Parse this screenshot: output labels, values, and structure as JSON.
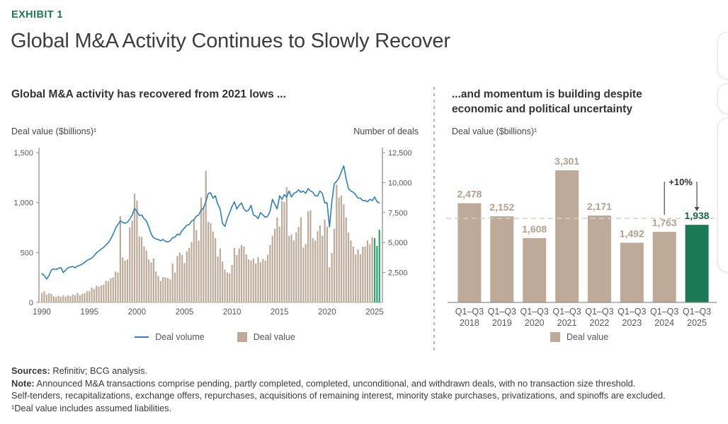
{
  "header": {
    "exhibit_label": "EXHIBIT 1",
    "title": "Global M&A Activity Continues to Slowly Recover"
  },
  "colors": {
    "brand_green": "#1b7b4f",
    "bar_tan": "#bdaa99",
    "bar_green_left": "#2ca46b",
    "bar_green_right": "#1b7a55",
    "line_blue": "#2e7fc0",
    "value_label_tan": "#b3a08e",
    "value_label_green": "#186a48",
    "axis_gray": "#8f8f8f",
    "dashed_ref": "#d7d1c9",
    "text_dark": "#333333"
  },
  "chart_data": [
    {
      "type": "bar+line",
      "panel_title": "Global M&A activity has recovered from 2021 lows ...",
      "left_axis": {
        "label": "Deal value ($billions)¹",
        "max": 1500,
        "ticks": [
          {
            "value": 0,
            "label": "0"
          },
          {
            "value": 500,
            "label": "500"
          },
          {
            "value": 1000,
            "label": "1,000"
          },
          {
            "value": 1500,
            "label": "1,500"
          }
        ]
      },
      "right_axis": {
        "label": "Number of deals",
        "max": 12500,
        "ticks": [
          {
            "value": 2500,
            "label": "2,500"
          },
          {
            "value": 5000,
            "label": "5,000"
          },
          {
            "value": 7500,
            "label": "7,500"
          },
          {
            "value": 10000,
            "label": "10,000"
          },
          {
            "value": 12500,
            "label": "12,500"
          }
        ]
      },
      "x_axis": {
        "start_year": 1990,
        "period": "quarterly",
        "end": "2025 Q3",
        "tick_years": [
          1990,
          1995,
          2000,
          2005,
          2010,
          2015,
          2020,
          2025
        ]
      },
      "bar_series": {
        "name": "Deal value",
        "axis": "left",
        "color": "#bdaa99",
        "highlight_color": "#2ca46b",
        "highlight_last_n": 3,
        "values": [
          95,
          115,
          78,
          90,
          85,
          62,
          55,
          66,
          56,
          70,
          60,
          70,
          62,
          80,
          74,
          96,
          72,
          86,
          92,
          112,
          112,
          148,
          136,
          168,
          158,
          172,
          178,
          215,
          215,
          242,
          252,
          310,
          300,
          865,
          450,
          420,
          430,
          750,
          820,
          1090,
          1020,
          660,
          655,
          560,
          520,
          430,
          400,
          440,
          310,
          265,
          215,
          255,
          250,
          245,
          230,
          390,
          300,
          465,
          500,
          475,
          395,
          512,
          547,
          605,
          830,
          725,
          620,
          1050,
          945,
          1320,
          805,
          795,
          710,
          645,
          460,
          540,
          410,
          330,
          300,
          290,
          375,
          545,
          475,
          540,
          575,
          560,
          480,
          430,
          420,
          440,
          390,
          455,
          400,
          435,
          420,
          477,
          573,
          667,
          737,
          853,
          760,
          1016,
          1004,
          1156,
          667,
          678,
          620,
          702,
          756,
          853,
          550,
          585,
          911,
          923,
          644,
          620,
          713,
          771,
          668,
          830,
          760,
          352,
          496,
          737,
          1179,
          1051,
          1071,
          981,
          851,
          700,
          620,
          560,
          480,
          530,
          482,
          560,
          560,
          620,
          583,
          655,
          644,
          566,
          728
        ]
      },
      "line_series": {
        "name": "Deal volume",
        "axis": "right",
        "color": "#2e7fc0",
        "values": [
          2400,
          2250,
          1950,
          2250,
          2700,
          2800,
          2750,
          2850,
          2900,
          2500,
          2700,
          2900,
          2950,
          3000,
          2900,
          3050,
          3100,
          3200,
          3350,
          3500,
          3600,
          3700,
          3900,
          4150,
          4300,
          4450,
          4600,
          4800,
          5000,
          5300,
          5700,
          6200,
          6500,
          6800,
          6700,
          6600,
          6700,
          6950,
          7300,
          7850,
          7600,
          7250,
          7300,
          7000,
          6800,
          6300,
          5700,
          5400,
          5300,
          5250,
          5150,
          5250,
          5100,
          5050,
          5150,
          5400,
          5450,
          5700,
          5650,
          6000,
          6200,
          6450,
          6500,
          6800,
          6900,
          7200,
          7300,
          7700,
          7900,
          8400,
          9100,
          9150,
          8700,
          8900,
          8200,
          7800,
          6600,
          6350,
          7000,
          7500,
          8000,
          8400,
          7800,
          8100,
          8300,
          7800,
          7600,
          7700,
          8100,
          7300,
          7200,
          7000,
          7500,
          7300,
          7100,
          7200,
          7600,
          8600,
          8200,
          7800,
          8900,
          8600,
          9000,
          8800,
          9300,
          8800,
          9100,
          9200,
          9400,
          9200,
          9300,
          9100,
          9500,
          9300,
          9200,
          8900,
          8900,
          9300,
          9100,
          8300,
          8300,
          6300,
          8400,
          9900,
          10100,
          10400,
          10900,
          11400,
          10300,
          9500,
          9300,
          9200,
          9000,
          8700,
          8700,
          8500,
          8500,
          8400,
          8600,
          8500,
          8800,
          8400,
          8300
        ]
      },
      "legend": [
        {
          "label": "Deal volume",
          "type": "line",
          "color": "#2e7fc0"
        },
        {
          "label": "Deal value",
          "type": "square",
          "color": "#bdaa99"
        }
      ]
    },
    {
      "type": "bar",
      "panel_title": "...and momentum is building despite economic and political uncertainty",
      "ylabel": "Deal value ($billions)¹",
      "categories": [
        {
          "period": "Q1–Q3",
          "year": "2018"
        },
        {
          "period": "Q1–Q3",
          "year": "2019"
        },
        {
          "period": "Q1–Q3",
          "year": "2020"
        },
        {
          "period": "Q1–Q3",
          "year": "2021"
        },
        {
          "period": "Q1–Q3",
          "year": "2022"
        },
        {
          "period": "Q1–Q3",
          "year": "2023"
        },
        {
          "period": "Q1–Q3",
          "year": "2024"
        },
        {
          "period": "Q1–Q3",
          "year": "2025"
        }
      ],
      "values": [
        2478,
        2152,
        1608,
        3301,
        2171,
        1492,
        1763,
        1938
      ],
      "value_labels": [
        "2,478",
        "2,152",
        "1,608",
        "3,301",
        "2,171",
        "1,492",
        "1,763",
        "1,938"
      ],
      "bar_color": "#bdaa99",
      "highlight_color": "#1b7a55",
      "highlight_index": 7,
      "label_color": "#b3a08e",
      "highlight_label_color": "#186a48",
      "reference_line_value": 2100,
      "annotation": {
        "text": "+10%",
        "from_index": 6,
        "to_index": 7
      },
      "legend": [
        {
          "label": "Deal value",
          "type": "square",
          "color": "#bdaa99"
        }
      ]
    }
  ],
  "footer": {
    "lines": [
      {
        "bold": "Sources:",
        "text": " Refinitiv; BCG analysis."
      },
      {
        "bold": "Note:",
        "text": " Announced M&A transactions comprise pending, partly completed, completed, unconditional, and withdrawn deals, with no transaction size threshold."
      },
      {
        "bold": "",
        "text": "Self-tenders, recapitalizations, exchange offers, repurchases, acquisitions of remaining interest, minority stake purchases, privatizations, and spinoffs are excluded."
      },
      {
        "bold": "",
        "text": "¹Deal value includes assumed liabilities."
      }
    ]
  }
}
